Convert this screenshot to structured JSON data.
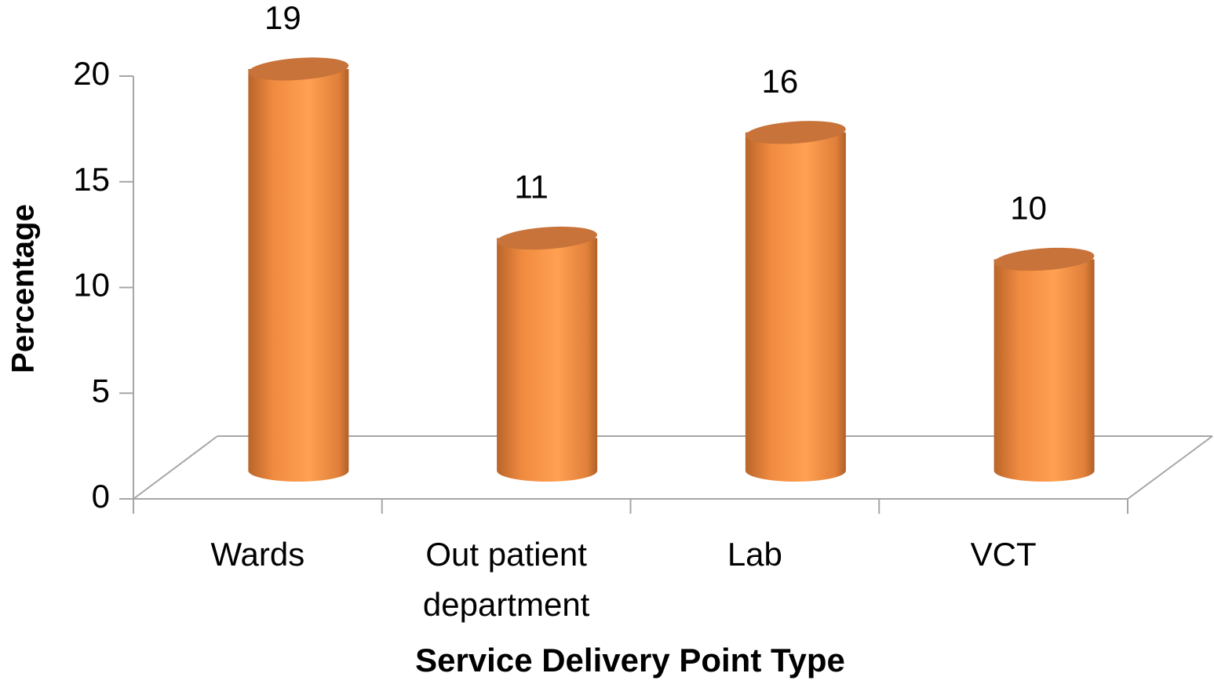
{
  "chart_data": {
    "type": "bar",
    "x_label": "Service Delivery Point Type",
    "y_label": "Percentage",
    "categories": [
      "Wards",
      "Out patient department",
      "Lab",
      "VCT"
    ],
    "values": [
      19,
      11,
      16,
      10
    ],
    "color": "#f79646",
    "ylim": [
      0,
      20
    ],
    "yticks": [
      0,
      5,
      10,
      15,
      20
    ]
  }
}
